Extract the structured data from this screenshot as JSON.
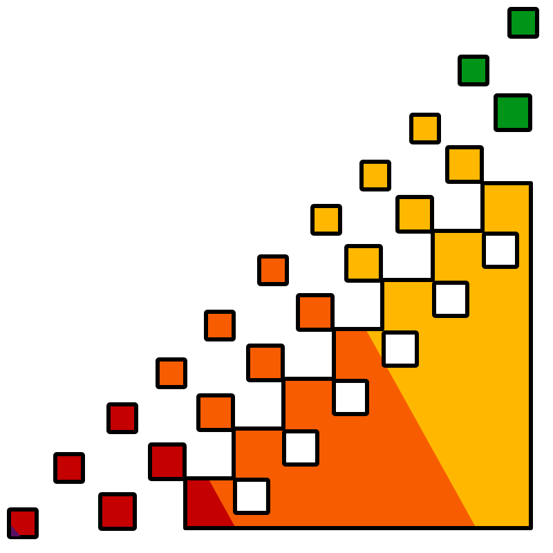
{
  "figure": {
    "title": "",
    "description_visible_text": []
  },
  "palette": {
    "red": "#c40000",
    "orange": "#f75c00",
    "amber": "#ffb700",
    "green": "#009418",
    "purple": "#5a1060",
    "outline": "#000000",
    "empty": "#ffffff"
  }
}
